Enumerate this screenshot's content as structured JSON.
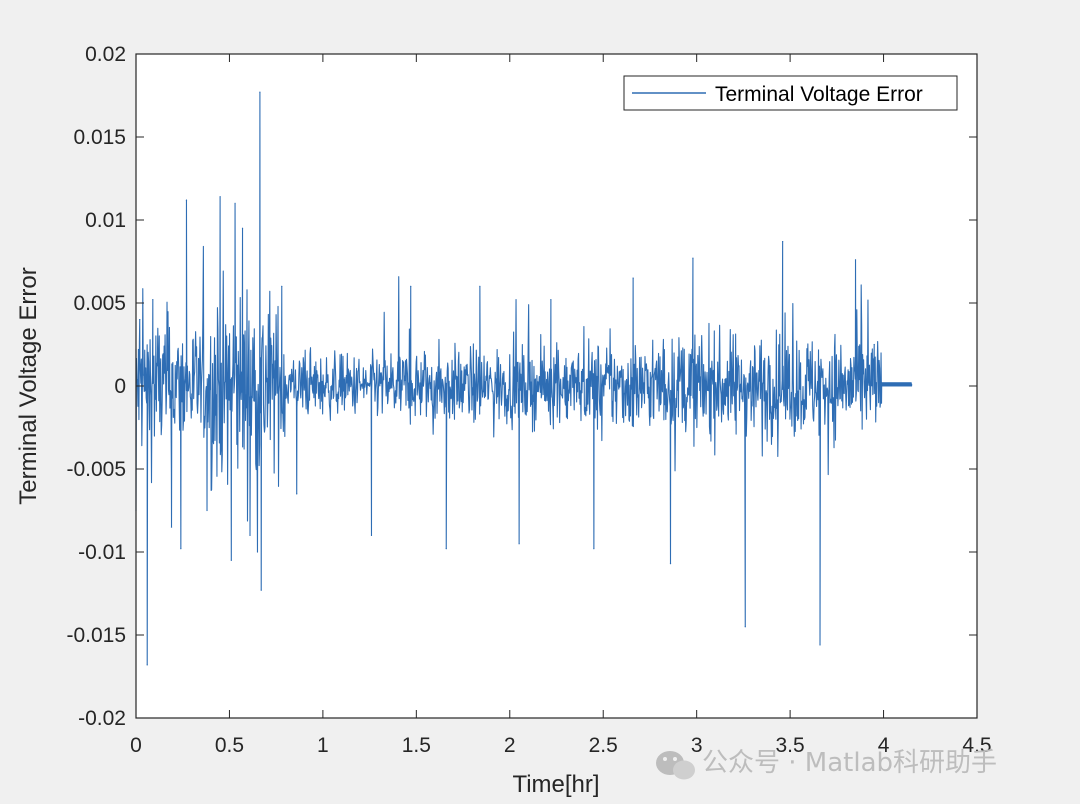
{
  "chart_data": {
    "type": "line",
    "title": "",
    "xlabel": "Time[hr]",
    "ylabel": "Terminal Voltage Error",
    "xlim": [
      0,
      4.5
    ],
    "ylim": [
      -0.02,
      0.02
    ],
    "xticks": [
      0,
      0.5,
      1,
      1.5,
      2,
      2.5,
      3,
      3.5,
      4,
      4.5
    ],
    "xtick_labels": [
      "0",
      "0.5",
      "1",
      "1.5",
      "2",
      "2.5",
      "3",
      "3.5",
      "4",
      "4.5"
    ],
    "yticks": [
      0.02,
      0.015,
      0.01,
      0.005,
      0,
      -0.005,
      -0.01,
      -0.015,
      -0.02
    ],
    "ytick_labels": [
      "0.02",
      "0.015",
      "0.01",
      "0.005",
      "0",
      "-0.005",
      "-0.01",
      "-0.015",
      "-0.02"
    ],
    "grid": false,
    "legend_position": "top-right",
    "series": [
      {
        "name": "Terminal Voltage Error",
        "color": "#2e6db4",
        "x_range": [
          0,
          4.15
        ],
        "points": [
          [
            0.0,
            -0.0075
          ],
          [
            0.02,
            0.004
          ],
          [
            0.06,
            -0.0168
          ],
          [
            0.09,
            0.0052
          ],
          [
            0.19,
            -0.0085
          ],
          [
            0.24,
            -0.0098
          ],
          [
            0.27,
            0.0112
          ],
          [
            0.38,
            -0.0075
          ],
          [
            0.45,
            0.0114
          ],
          [
            0.51,
            -0.0105
          ],
          [
            0.53,
            0.011
          ],
          [
            0.57,
            0.0095
          ],
          [
            0.61,
            -0.009
          ],
          [
            0.65,
            -0.01
          ],
          [
            0.663,
            0.0177
          ],
          [
            0.67,
            -0.0123
          ],
          [
            0.78,
            0.006
          ],
          [
            0.86,
            -0.0065
          ],
          [
            1.26,
            -0.009
          ],
          [
            1.47,
            0.006
          ],
          [
            1.66,
            -0.0098
          ],
          [
            1.84,
            0.006
          ],
          [
            2.05,
            -0.0095
          ],
          [
            2.22,
            0.0052
          ],
          [
            2.45,
            -0.0098
          ],
          [
            2.66,
            0.0065
          ],
          [
            2.86,
            -0.0107
          ],
          [
            2.98,
            0.0077
          ],
          [
            3.26,
            -0.0145
          ],
          [
            3.46,
            0.0087
          ],
          [
            3.66,
            -0.0156
          ],
          [
            3.85,
            0.0076
          ],
          [
            3.95,
            0.0025
          ],
          [
            3.99,
            0.0
          ],
          [
            4.15,
            0.0001
          ]
        ]
      }
    ]
  },
  "watermark": {
    "text": "公众号 · Matlab科研助手",
    "icon": "wechat-icon"
  }
}
